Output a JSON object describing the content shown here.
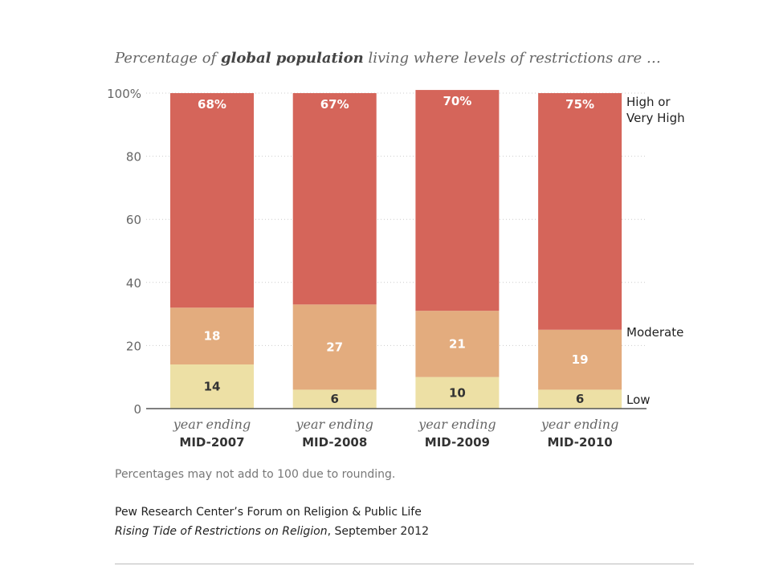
{
  "subtitle": {
    "pre": "Percentage of ",
    "bold": "global population",
    "post": " living where levels of restrictions are …"
  },
  "chart_data": {
    "type": "bar",
    "stacked": true,
    "categories": [
      {
        "line1": "year ending",
        "line2": "MID-2007"
      },
      {
        "line1": "year ending",
        "line2": "MID-2008"
      },
      {
        "line1": "year ending",
        "line2": "MID-2009"
      },
      {
        "line1": "year ending",
        "line2": "MID-2010"
      }
    ],
    "series": [
      {
        "name": "Low",
        "values": [
          14,
          6,
          10,
          6
        ],
        "labels": [
          "14",
          "6",
          "10",
          "6"
        ],
        "color": "#ede0a5",
        "label_color": "#333333"
      },
      {
        "name": "Moderate",
        "values": [
          18,
          27,
          21,
          19
        ],
        "labels": [
          "18",
          "27",
          "21",
          "19"
        ],
        "color": "#e3ac7e",
        "label_color": "#ffffff"
      },
      {
        "name": "High or Very High",
        "name_lines": [
          "High or",
          "Very High"
        ],
        "values": [
          68,
          67,
          70,
          75
        ],
        "labels": [
          "68%",
          "67%",
          "70%",
          "75%"
        ],
        "color": "#d5655a",
        "label_color": "#ffffff"
      }
    ],
    "ylim": [
      0,
      100
    ],
    "yticks": [
      {
        "value": 0,
        "label": "0"
      },
      {
        "value": 20,
        "label": "20"
      },
      {
        "value": 40,
        "label": "40"
      },
      {
        "value": 60,
        "label": "60"
      },
      {
        "value": 80,
        "label": "80"
      },
      {
        "value": 100,
        "label": "100%"
      }
    ],
    "grid": true,
    "legend": "right"
  },
  "footer": {
    "note": "Percentages may not add to 100 due to rounding.",
    "source_line1": "Pew Research Center’s Forum on Religion & Public Life",
    "source_title": "Rising Tide of Restrictions on Religion",
    "source_rest": ", September 2012"
  }
}
